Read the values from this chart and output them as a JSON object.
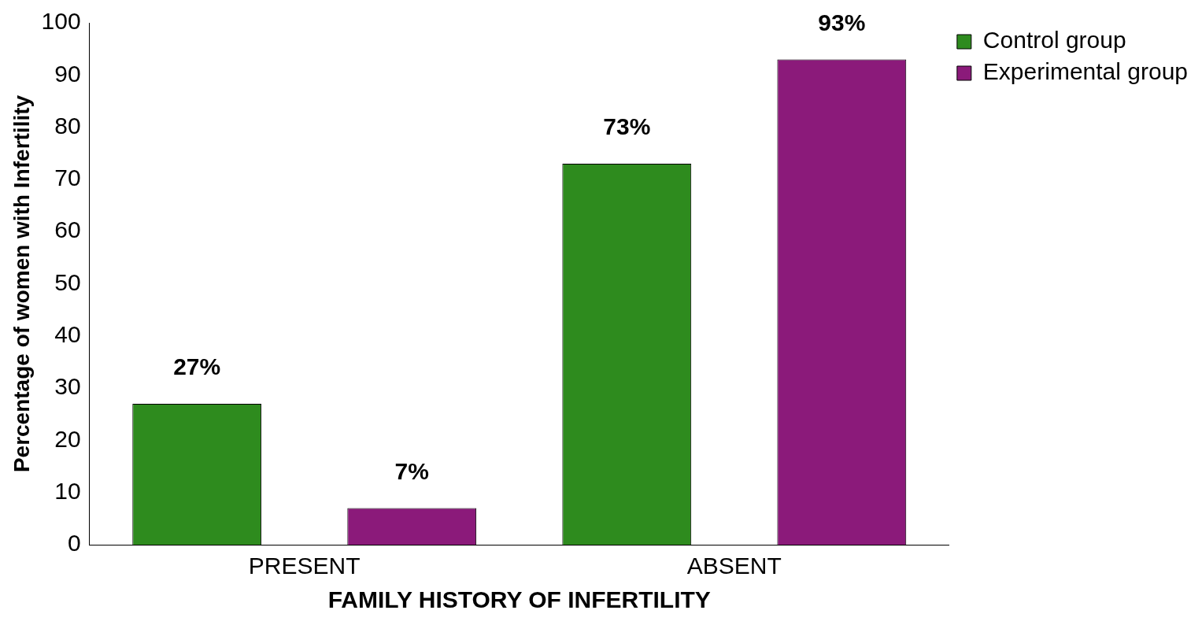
{
  "chart_data": {
    "type": "bar",
    "xlabel": "FAMILY HISTORY OF INFERTILITY",
    "ylabel": "Percentage of women with Infertility",
    "categories": [
      "PRESENT",
      "ABSENT"
    ],
    "series": [
      {
        "name": "Control group",
        "color": "#2e8b1e",
        "values": [
          27,
          73
        ],
        "value_labels": [
          "27%",
          "73%"
        ]
      },
      {
        "name": "Experimental group",
        "color": "#8b1a7a",
        "values": [
          7,
          93
        ],
        "value_labels": [
          "7%",
          "93%"
        ]
      }
    ],
    "ylim": [
      0,
      100
    ],
    "yticks": [
      0,
      10,
      20,
      30,
      40,
      50,
      60,
      70,
      80,
      90,
      100
    ],
    "legend": "top right"
  }
}
